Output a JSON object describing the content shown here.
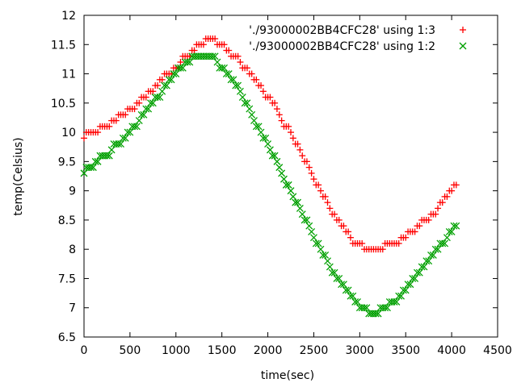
{
  "chart_data": {
    "type": "scatter",
    "xlabel": "time(sec)",
    "ylabel": "temp(Celsius)",
    "xlim": [
      0,
      4500
    ],
    "ylim": [
      6.5,
      12
    ],
    "x_ticks": [
      0,
      500,
      1000,
      1500,
      2000,
      2500,
      3000,
      3500,
      4000,
      4500
    ],
    "x_tick_labels": [
      "0",
      "500",
      "1000",
      "1500",
      "2000",
      "2500",
      "3000",
      "3500",
      "4000",
      "4500"
    ],
    "y_ticks": [
      6.5,
      7,
      7.5,
      8,
      8.5,
      9,
      9.5,
      10,
      10.5,
      11,
      11.5,
      12
    ],
    "y_tick_labels": [
      "6.5",
      "7",
      "7.5",
      "8",
      "8.5",
      "9",
      "9.5",
      "10",
      "10.5",
      "11",
      "11.5",
      "12"
    ],
    "grid": false,
    "legend_position": "top-right",
    "series": [
      {
        "name": "'./93000002BB4CFC28' using 1:3",
        "marker": "plus",
        "color": "#ff0000",
        "points": [
          [
            0,
            9.9
          ],
          [
            50,
            10.0
          ],
          [
            100,
            10.0
          ],
          [
            150,
            10.0
          ],
          [
            200,
            10.1
          ],
          [
            250,
            10.1
          ],
          [
            300,
            10.2
          ],
          [
            350,
            10.2
          ],
          [
            400,
            10.3
          ],
          [
            450,
            10.3
          ],
          [
            500,
            10.4
          ],
          [
            550,
            10.4
          ],
          [
            600,
            10.5
          ],
          [
            650,
            10.6
          ],
          [
            700,
            10.7
          ],
          [
            750,
            10.7
          ],
          [
            800,
            10.8
          ],
          [
            850,
            10.9
          ],
          [
            900,
            11.0
          ],
          [
            950,
            11.0
          ],
          [
            1000,
            11.1
          ],
          [
            1050,
            11.2
          ],
          [
            1100,
            11.3
          ],
          [
            1150,
            11.3
          ],
          [
            1200,
            11.4
          ],
          [
            1250,
            11.5
          ],
          [
            1300,
            11.5
          ],
          [
            1350,
            11.6
          ],
          [
            1400,
            11.6
          ],
          [
            1450,
            11.5
          ],
          [
            1500,
            11.5
          ],
          [
            1550,
            11.4
          ],
          [
            1600,
            11.3
          ],
          [
            1650,
            11.3
          ],
          [
            1700,
            11.2
          ],
          [
            1750,
            11.1
          ],
          [
            1800,
            11.0
          ],
          [
            1850,
            10.9
          ],
          [
            1900,
            10.8
          ],
          [
            1950,
            10.7
          ],
          [
            2000,
            10.6
          ],
          [
            2050,
            10.5
          ],
          [
            2100,
            10.4
          ],
          [
            2150,
            10.2
          ],
          [
            2200,
            10.1
          ],
          [
            2250,
            10.0
          ],
          [
            2300,
            9.8
          ],
          [
            2350,
            9.7
          ],
          [
            2400,
            9.5
          ],
          [
            2450,
            9.4
          ],
          [
            2500,
            9.2
          ],
          [
            2550,
            9.1
          ],
          [
            2600,
            8.9
          ],
          [
            2650,
            8.8
          ],
          [
            2700,
            8.6
          ],
          [
            2750,
            8.5
          ],
          [
            2800,
            8.4
          ],
          [
            2850,
            8.3
          ],
          [
            2900,
            8.2
          ],
          [
            2950,
            8.1
          ],
          [
            3000,
            8.1
          ],
          [
            3050,
            8.0
          ],
          [
            3100,
            8.0
          ],
          [
            3150,
            8.0
          ],
          [
            3200,
            8.0
          ],
          [
            3250,
            8.0
          ],
          [
            3300,
            8.1
          ],
          [
            3350,
            8.1
          ],
          [
            3400,
            8.1
          ],
          [
            3450,
            8.2
          ],
          [
            3500,
            8.2
          ],
          [
            3550,
            8.3
          ],
          [
            3600,
            8.3
          ],
          [
            3650,
            8.4
          ],
          [
            3700,
            8.5
          ],
          [
            3750,
            8.5
          ],
          [
            3800,
            8.6
          ],
          [
            3850,
            8.7
          ],
          [
            3900,
            8.8
          ],
          [
            3950,
            8.9
          ],
          [
            4000,
            9.0
          ],
          [
            4050,
            9.1
          ]
        ]
      },
      {
        "name": "'./93000002BB4CFC28' using 1:2",
        "marker": "x",
        "color": "#00a000",
        "points": [
          [
            0,
            9.3
          ],
          [
            50,
            9.4
          ],
          [
            100,
            9.4
          ],
          [
            150,
            9.5
          ],
          [
            200,
            9.6
          ],
          [
            250,
            9.6
          ],
          [
            300,
            9.7
          ],
          [
            350,
            9.8
          ],
          [
            400,
            9.8
          ],
          [
            450,
            9.9
          ],
          [
            500,
            10.0
          ],
          [
            550,
            10.1
          ],
          [
            600,
            10.2
          ],
          [
            650,
            10.3
          ],
          [
            700,
            10.4
          ],
          [
            750,
            10.5
          ],
          [
            800,
            10.6
          ],
          [
            850,
            10.7
          ],
          [
            900,
            10.8
          ],
          [
            950,
            10.9
          ],
          [
            1000,
            11.0
          ],
          [
            1050,
            11.1
          ],
          [
            1100,
            11.2
          ],
          [
            1150,
            11.2
          ],
          [
            1200,
            11.3
          ],
          [
            1250,
            11.3
          ],
          [
            1300,
            11.3
          ],
          [
            1350,
            11.3
          ],
          [
            1400,
            11.3
          ],
          [
            1450,
            11.2
          ],
          [
            1500,
            11.1
          ],
          [
            1550,
            11.0
          ],
          [
            1600,
            10.9
          ],
          [
            1650,
            10.8
          ],
          [
            1700,
            10.7
          ],
          [
            1750,
            10.5
          ],
          [
            1800,
            10.4
          ],
          [
            1850,
            10.2
          ],
          [
            1900,
            10.1
          ],
          [
            1950,
            9.9
          ],
          [
            2000,
            9.8
          ],
          [
            2050,
            9.6
          ],
          [
            2100,
            9.5
          ],
          [
            2150,
            9.3
          ],
          [
            2200,
            9.1
          ],
          [
            2250,
            9.0
          ],
          [
            2300,
            8.8
          ],
          [
            2350,
            8.7
          ],
          [
            2400,
            8.5
          ],
          [
            2450,
            8.4
          ],
          [
            2500,
            8.2
          ],
          [
            2550,
            8.1
          ],
          [
            2600,
            7.9
          ],
          [
            2650,
            7.8
          ],
          [
            2700,
            7.6
          ],
          [
            2750,
            7.5
          ],
          [
            2800,
            7.4
          ],
          [
            2850,
            7.3
          ],
          [
            2900,
            7.2
          ],
          [
            2950,
            7.1
          ],
          [
            3000,
            7.0
          ],
          [
            3050,
            7.0
          ],
          [
            3100,
            6.9
          ],
          [
            3150,
            6.9
          ],
          [
            3200,
            6.9
          ],
          [
            3250,
            7.0
          ],
          [
            3300,
            7.0
          ],
          [
            3350,
            7.1
          ],
          [
            3400,
            7.1
          ],
          [
            3450,
            7.2
          ],
          [
            3500,
            7.3
          ],
          [
            3550,
            7.4
          ],
          [
            3600,
            7.5
          ],
          [
            3650,
            7.6
          ],
          [
            3700,
            7.7
          ],
          [
            3750,
            7.8
          ],
          [
            3800,
            7.9
          ],
          [
            3850,
            8.0
          ],
          [
            3900,
            8.1
          ],
          [
            3950,
            8.2
          ],
          [
            4000,
            8.3
          ],
          [
            4050,
            8.4
          ]
        ]
      }
    ]
  }
}
